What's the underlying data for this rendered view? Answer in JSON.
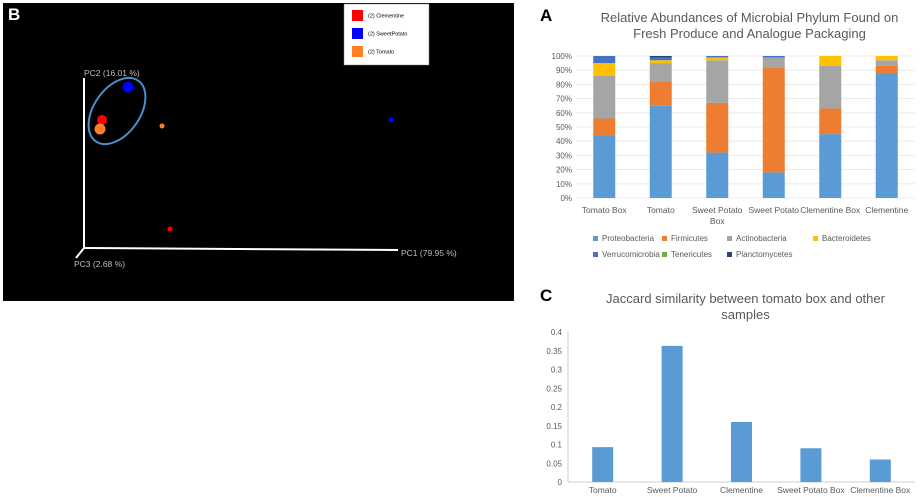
{
  "panel_labels": {
    "a": "A",
    "b": "B",
    "c": "C"
  },
  "chart_data": [
    {
      "id": "A",
      "type": "bar",
      "stacked": true,
      "title_lines": [
        "Relative Abundances of Microbial Phylum Found on",
        "Fresh Produce and Analogue Packaging"
      ],
      "categories": [
        [
          "Tomato Box"
        ],
        [
          "Tomato"
        ],
        [
          "Sweet Potato",
          "Box"
        ],
        [
          "Sweet Potato"
        ],
        [
          "Clementine Box"
        ],
        [
          "Clementine"
        ]
      ],
      "ylim": [
        0,
        100
      ],
      "yticks": [
        "0%",
        "10%",
        "20%",
        "30%",
        "40%",
        "50%",
        "60%",
        "70%",
        "80%",
        "90%",
        "100%"
      ],
      "series": [
        {
          "name": "Proteobacteria",
          "color": "#5b9bd5",
          "values": [
            44,
            65,
            32,
            18,
            45,
            88
          ]
        },
        {
          "name": "Firmicutes",
          "color": "#ed7d31",
          "values": [
            12,
            17,
            35,
            74,
            18,
            5
          ]
        },
        {
          "name": "Actinobacteria",
          "color": "#a5a5a5",
          "values": [
            30,
            13,
            30,
            7,
            30,
            4
          ]
        },
        {
          "name": "Bacteroidetes",
          "color": "#ffc000",
          "values": [
            9,
            2,
            2,
            0,
            7,
            3
          ]
        },
        {
          "name": "Verrucomicrobia",
          "color": "#4472c4",
          "values": [
            5,
            2,
            1,
            1,
            0,
            0
          ]
        },
        {
          "name": "Tenericutes",
          "color": "#70ad47",
          "values": [
            0,
            0,
            0,
            0,
            0,
            0
          ]
        },
        {
          "name": "Planctomycetes",
          "color": "#264478",
          "values": [
            0,
            1,
            0,
            0,
            0,
            0
          ]
        }
      ]
    },
    {
      "id": "B",
      "type": "scatter",
      "legend": [
        {
          "label": "(2) Clementine",
          "color": "#ff0000"
        },
        {
          "label": "(2) SweetPotato",
          "color": "#0000ff"
        },
        {
          "label": "(2) Tomato",
          "color": "#ff7f27"
        }
      ],
      "axes": {
        "x": "PC1 (79.95 %)",
        "y": "PC2 (16.01 %)",
        "z": "PC3 (2.68 %)"
      }
    },
    {
      "id": "C",
      "type": "bar",
      "title_lines": [
        "Jaccard similarity between tomato box and other",
        "samples"
      ],
      "categories": [
        "Tomato",
        "Sweet Potato",
        "Clementine",
        "Sweet Potato Box",
        "Clementine Box"
      ],
      "values": [
        0.093,
        0.363,
        0.16,
        0.09,
        0.06
      ],
      "color": "#5b9bd5",
      "ylim": [
        0,
        0.4
      ],
      "yticks": [
        "0",
        "0.05",
        "0.1",
        "0.15",
        "0.2",
        "0.25",
        "0.3",
        "0.35",
        "0.4"
      ]
    }
  ]
}
